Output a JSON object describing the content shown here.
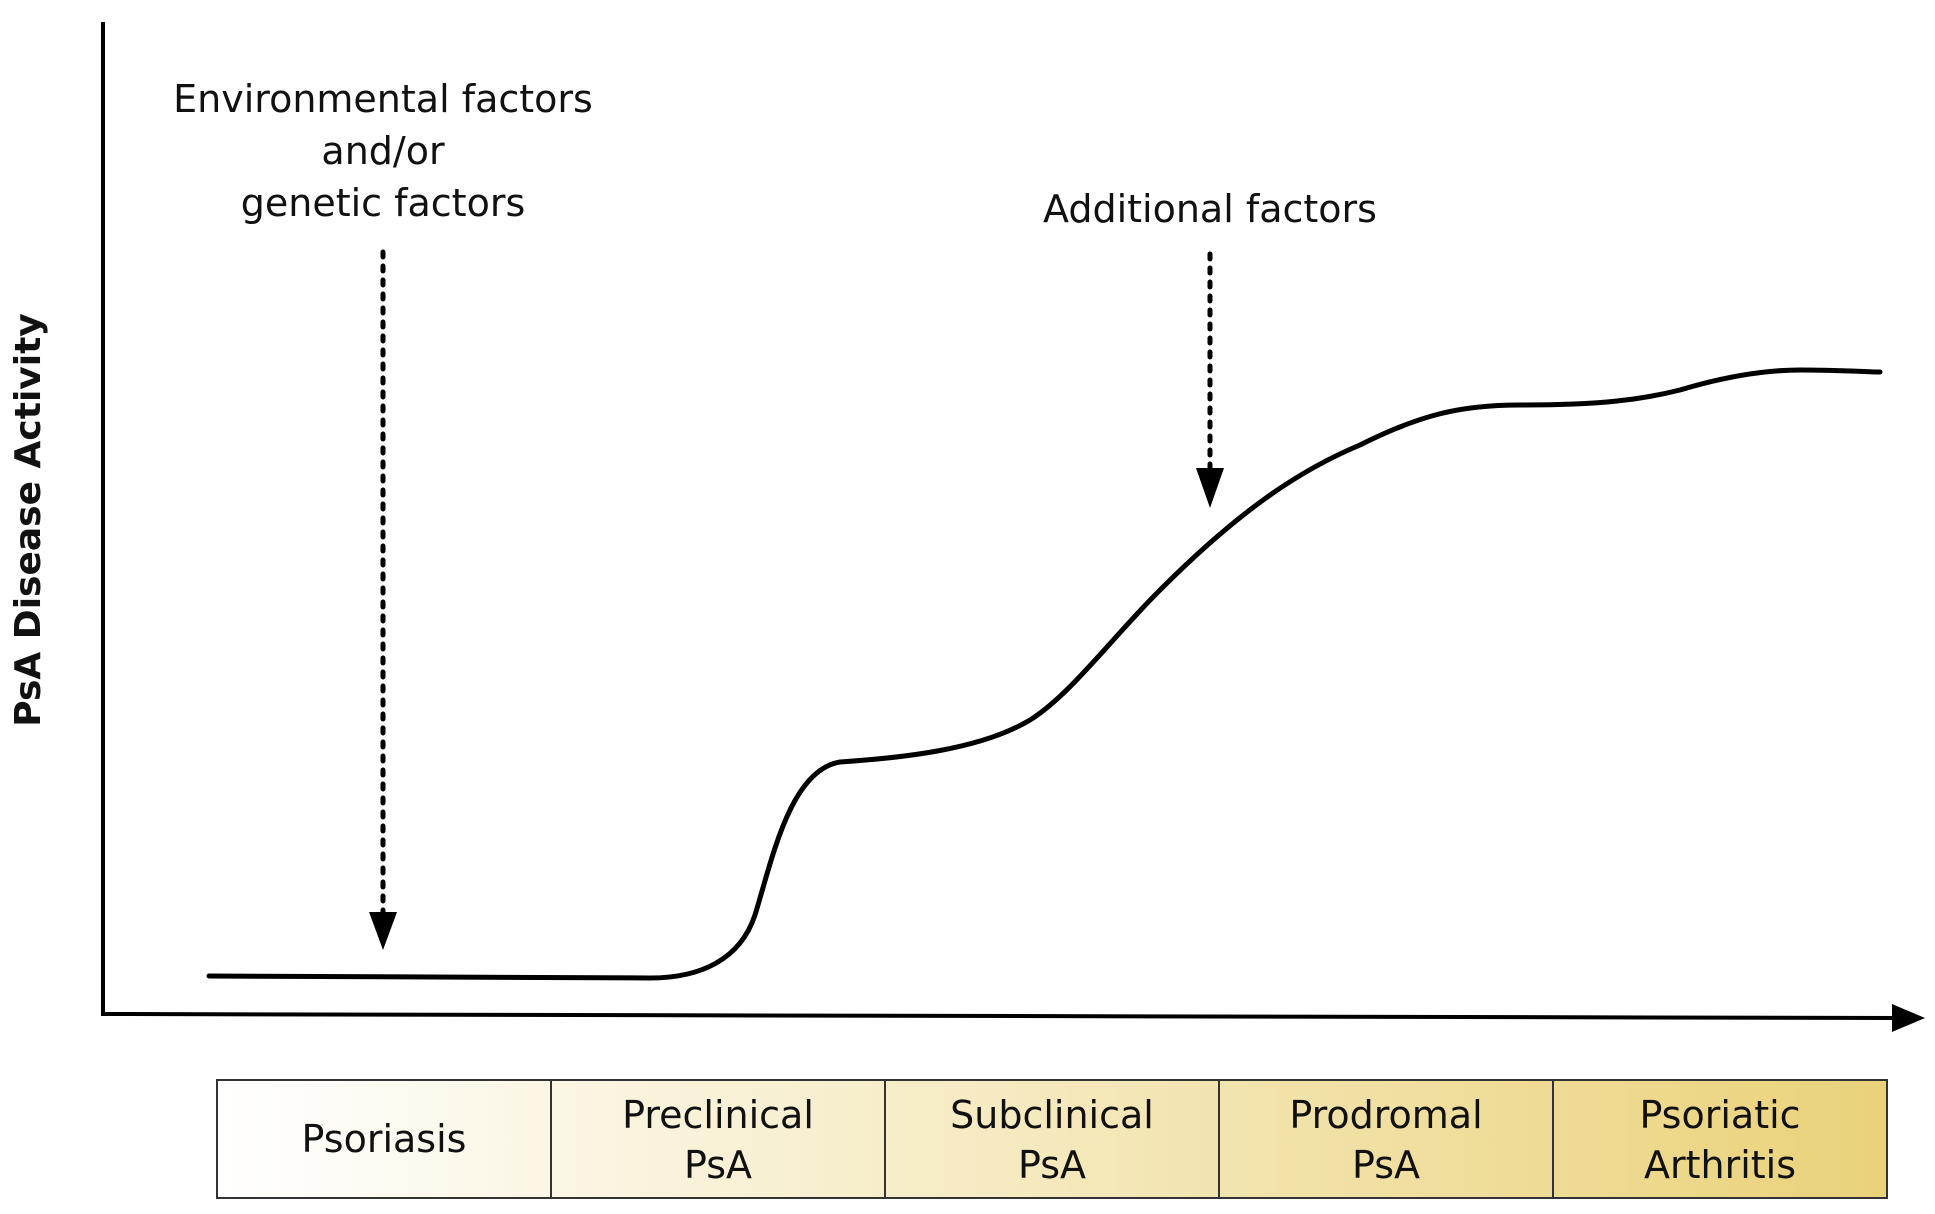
{
  "y_axis_label": "PsA Disease Activity",
  "annotations": {
    "environmental": {
      "lines": [
        "Environmental factors",
        "and/or",
        "genetic factors"
      ]
    },
    "additional": {
      "lines": [
        "Additional factors"
      ]
    }
  },
  "stages": [
    {
      "lines": [
        "Psoriasis"
      ]
    },
    {
      "lines": [
        "Preclinical",
        "PsA"
      ]
    },
    {
      "lines": [
        "Subclinical",
        "PsA"
      ]
    },
    {
      "lines": [
        "Prodromal",
        "PsA"
      ]
    },
    {
      "lines": [
        "Psoriatic",
        "Arthritis"
      ]
    }
  ],
  "colors": {
    "stage_gradient_start": "#ffffff",
    "stage_gradient_end": "#ead27a",
    "line": "#000000"
  }
}
